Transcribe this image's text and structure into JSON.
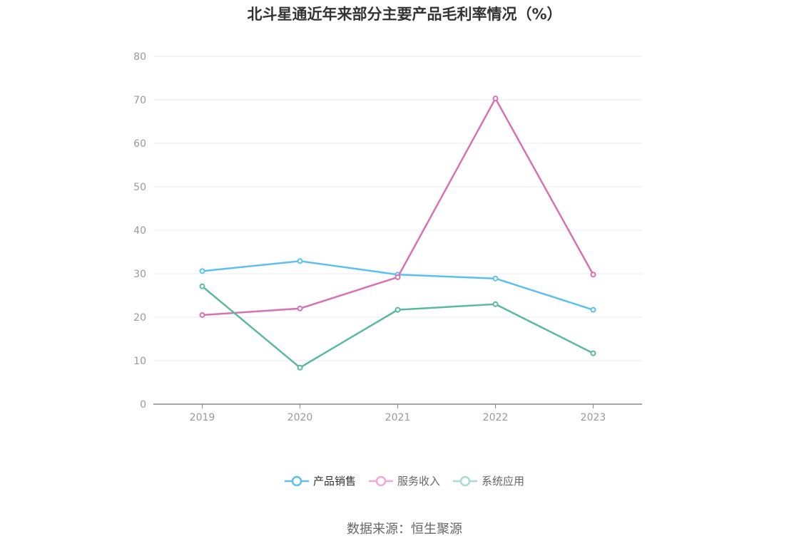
{
  "chart_data": {
    "type": "line",
    "title": "北斗星通近年来部分主要产品毛利率情况（%）",
    "categories": [
      "2019",
      "2020",
      "2021",
      "2022",
      "2023"
    ],
    "ylim": [
      0,
      80
    ],
    "yticks": [
      "0",
      "10",
      "20",
      "30",
      "40",
      "50",
      "60",
      "70",
      "80"
    ],
    "grid": true,
    "legend_position": "bottom",
    "series": [
      {
        "name": "产品销售",
        "color": "#5bc0f0",
        "values": [
          30.6,
          32.9,
          29.8,
          28.9,
          21.7
        ]
      },
      {
        "name": "服务收入",
        "color": "#d870b4",
        "values": [
          20.5,
          22.0,
          29.2,
          70.3,
          29.8
        ]
      },
      {
        "name": "系统应用",
        "color": "#5ab9a0",
        "values": [
          27.1,
          8.4,
          21.7,
          23.0,
          11.7
        ]
      }
    ]
  },
  "source": "数据来源：恒生聚源"
}
